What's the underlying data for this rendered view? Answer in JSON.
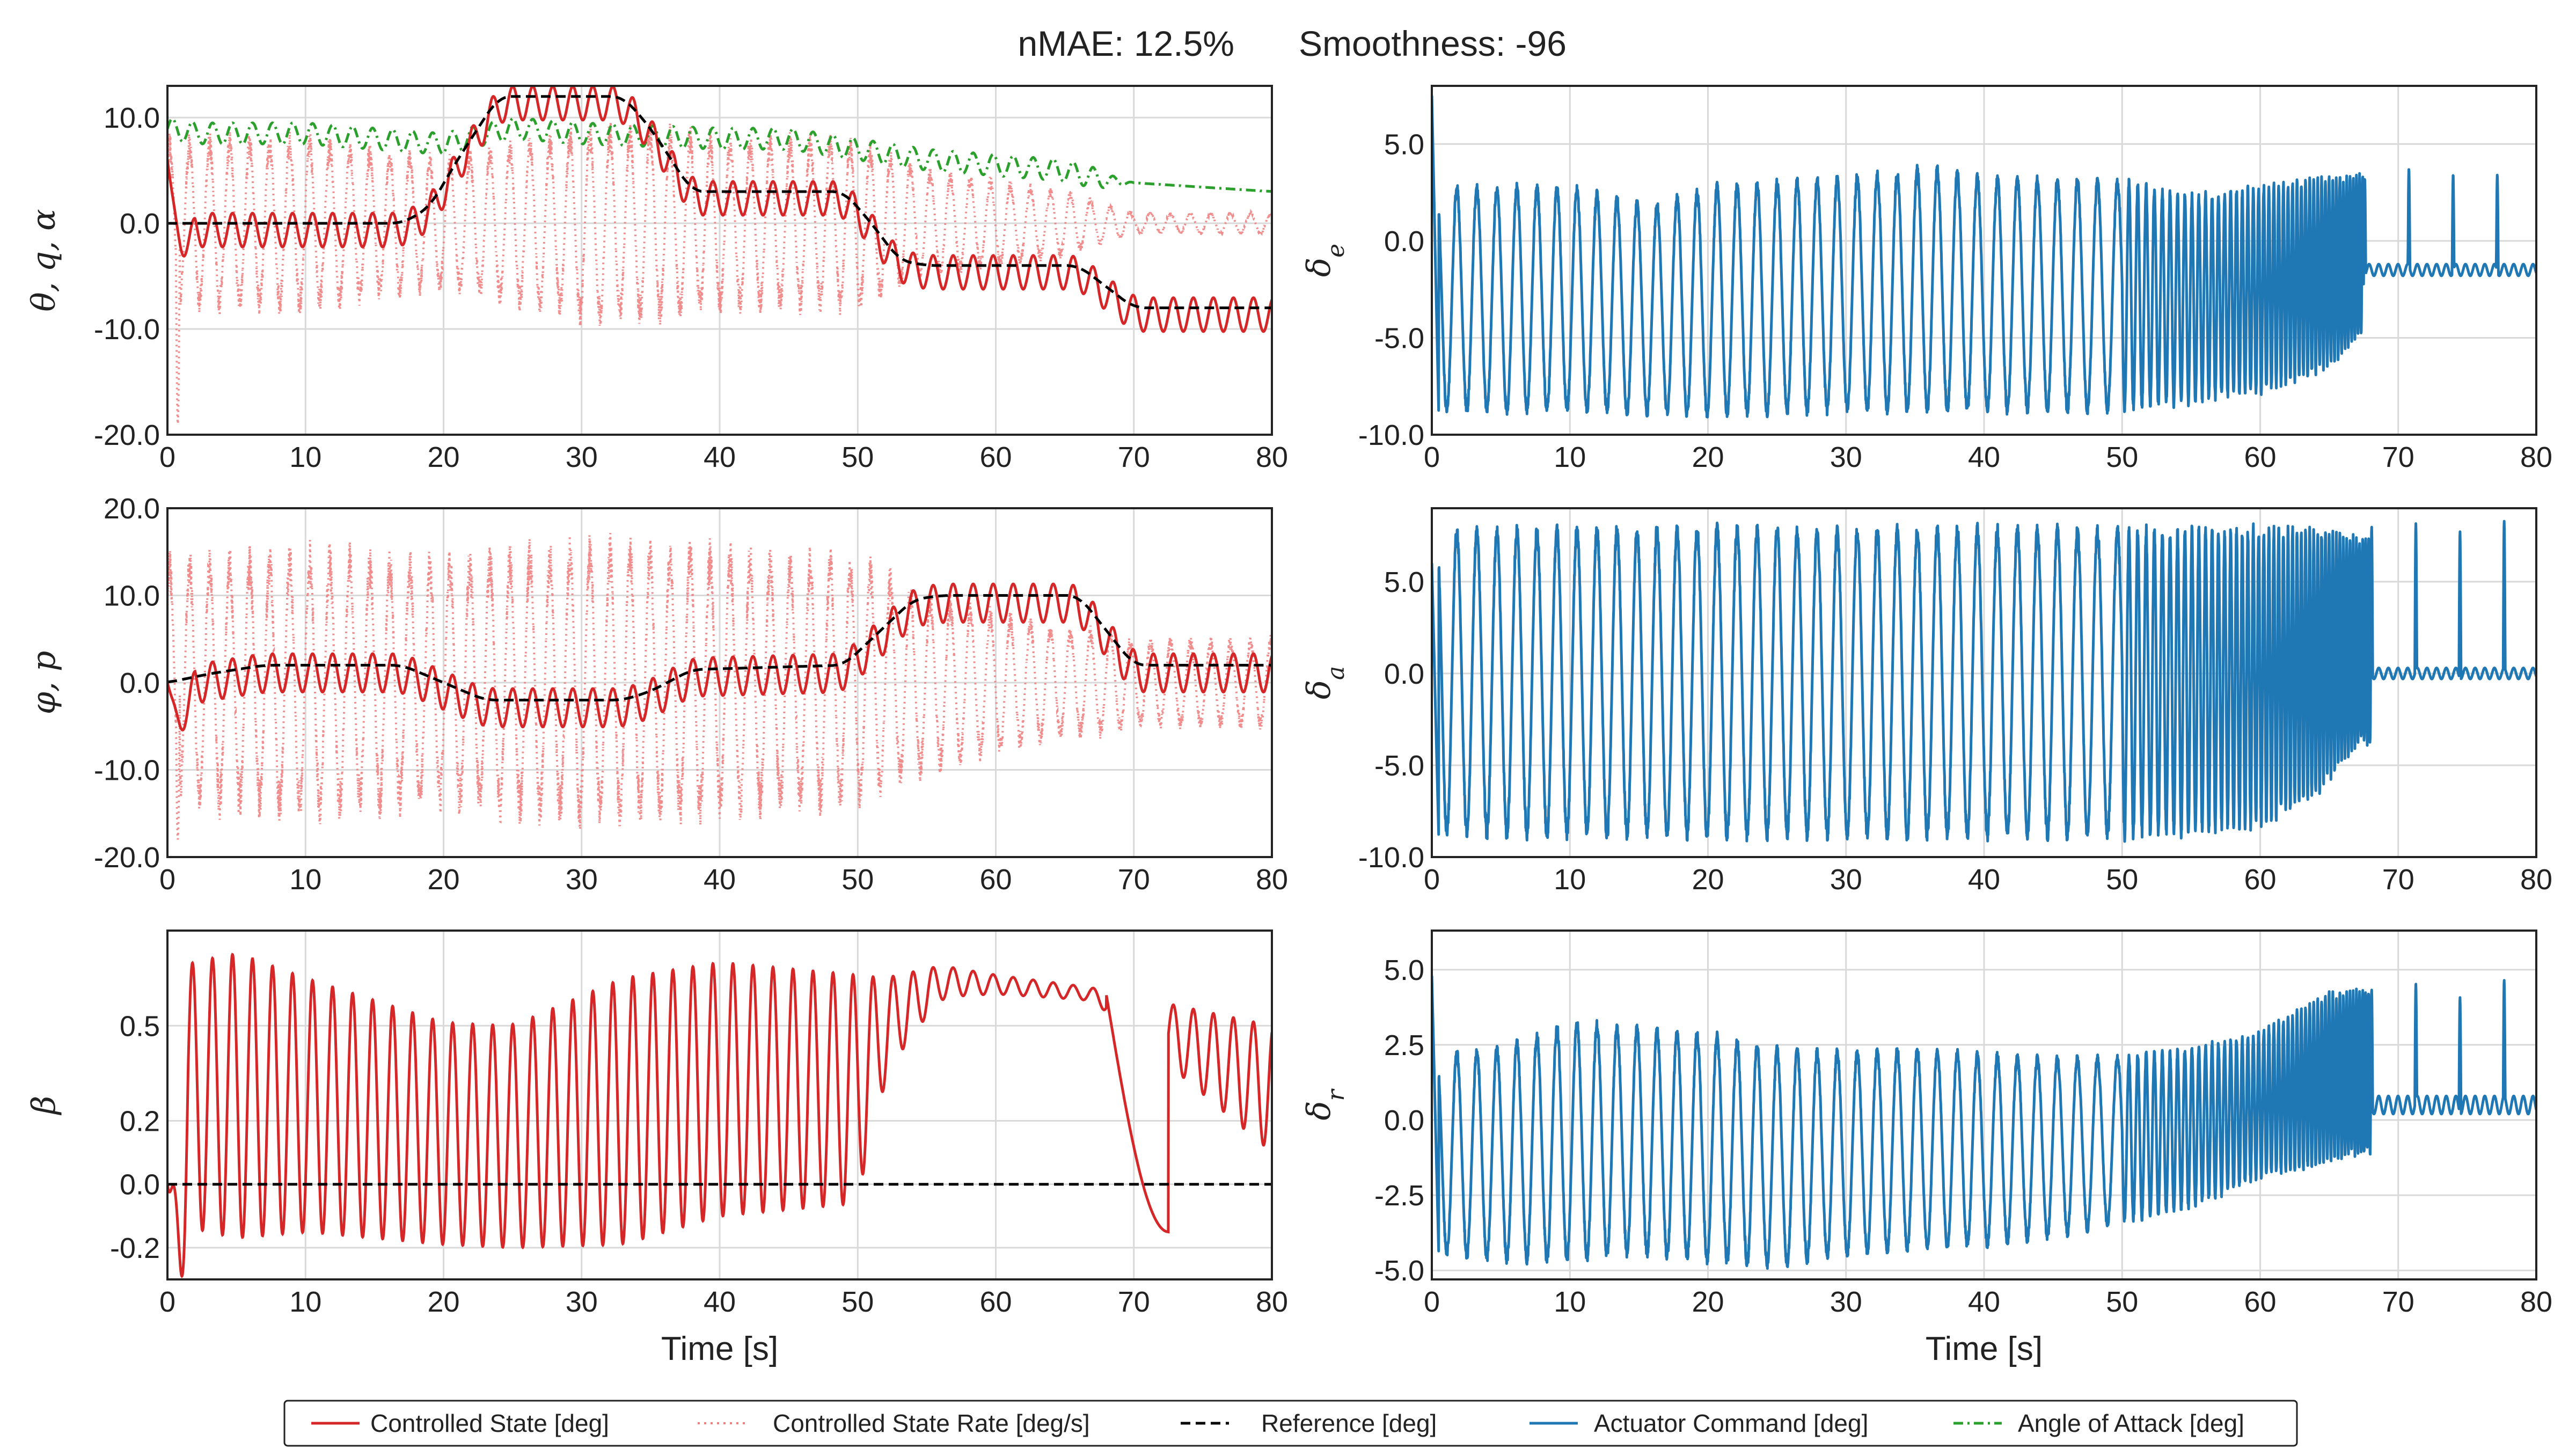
{
  "header": {
    "metric1": "nMAE: 12.5%",
    "metric2": "Smoothness: -96"
  },
  "colors": {
    "controlled_state": "#d62728",
    "controlled_rate": "#f08080",
    "reference": "#000000",
    "actuator": "#1f77b4",
    "alpha": "#2ca02c",
    "grid": "#d9d9d9"
  },
  "legend": [
    {
      "label": "Controlled State [deg]",
      "style": "solid",
      "color_key": "controlled_state"
    },
    {
      "label": "Controlled State Rate [deg/s]",
      "style": "dotted",
      "color_key": "controlled_rate"
    },
    {
      "label": "Reference [deg]",
      "style": "dashed",
      "color_key": "reference"
    },
    {
      "label": "Actuator Command [deg]",
      "style": "solid",
      "color_key": "actuator"
    },
    {
      "label": "Angle of Attack [deg]",
      "style": "dashdot",
      "color_key": "alpha"
    }
  ],
  "chart_data": [
    {
      "type": "line",
      "panel": "theta-q-alpha",
      "ylabel": "θ, q, α",
      "xlabel": "",
      "xlim": [
        0,
        80
      ],
      "ylim": [
        -20,
        13
      ],
      "yticks": [
        -20,
        -10,
        0,
        10
      ],
      "ytick_labels": [
        "-20.0",
        "-10.0",
        "0.0",
        "10.0"
      ],
      "xticks": [
        0,
        10,
        20,
        30,
        40,
        50,
        60,
        70,
        80
      ],
      "grid": true,
      "series": [
        {
          "kind": "reference",
          "name": "Reference [deg]",
          "x": [
            0,
            17,
            19,
            21,
            23,
            24,
            33,
            35,
            37,
            38,
            49,
            51,
            53,
            55,
            66,
            68,
            70,
            80
          ],
          "y": [
            0,
            0,
            1.5,
            6,
            10,
            12,
            12,
            9,
            5,
            3,
            3,
            0,
            -3.5,
            -4,
            -4,
            -6,
            -8,
            -8
          ]
        },
        {
          "kind": "state",
          "name": "Controlled State [deg]",
          "base": "reference",
          "osc_amp": 1.6,
          "osc_period": 1.45,
          "initial": [
            6,
            -4.5
          ]
        },
        {
          "kind": "rate",
          "name": "Controlled State Rate [deg/s]",
          "center": 0,
          "envelope": {
            "x": [
              0,
              10,
              20,
              30,
              35,
              40,
              50,
              55,
              60,
              65,
              70,
              80
            ],
            "y": [
              8,
              8,
              6,
              9,
              9,
              8,
              8,
              5,
              4,
              3,
              1,
              1
            ]
          },
          "min_spike": -19
        },
        {
          "kind": "alpha",
          "name": "Angle of Attack [deg]",
          "x": [
            0,
            2,
            10,
            20,
            25,
            30,
            40,
            45,
            50,
            55,
            60,
            65,
            68,
            80
          ],
          "y": [
            9,
            8.5,
            8.5,
            7.5,
            9,
            8.5,
            8,
            8,
            7,
            6,
            5.5,
            5,
            4,
            3
          ],
          "osc_amp": 1.0,
          "osc_fade_at": 67
        }
      ]
    },
    {
      "type": "line",
      "panel": "phi-p",
      "ylabel": "φ, p",
      "xlabel": "",
      "xlim": [
        0,
        80
      ],
      "ylim": [
        -20,
        20
      ],
      "yticks": [
        -20,
        -10,
        0,
        10,
        20
      ],
      "ytick_labels": [
        "-20.0",
        "-10.0",
        "0.0",
        "10.0",
        "20.0"
      ],
      "xticks": [
        0,
        10,
        20,
        30,
        40,
        50,
        60,
        70,
        80
      ],
      "grid": true,
      "series": [
        {
          "kind": "reference",
          "name": "Reference [deg]",
          "x": [
            0,
            3,
            7,
            17,
            20,
            23,
            33,
            35,
            38,
            49,
            51,
            54,
            56,
            66,
            68,
            70,
            80
          ],
          "y": [
            0,
            1,
            2,
            2,
            0,
            -2,
            -2,
            -1,
            1.5,
            2,
            5,
            9.5,
            10,
            10,
            6,
            2,
            2
          ]
        },
        {
          "kind": "state",
          "name": "Controlled State [deg]",
          "base": "reference",
          "osc_amp": 2.2,
          "osc_period": 1.45,
          "initial": [
            0,
            -4
          ]
        },
        {
          "kind": "rate",
          "name": "Controlled State Rate [deg/s]",
          "center": 0,
          "envelope": {
            "x": [
              0,
              10,
              20,
              30,
              40,
              50,
              55,
              60,
              65,
              68,
              70,
              80
            ],
            "y": [
              14,
              15,
              14,
              16,
              15,
              14,
              10,
              8,
              6,
              6,
              5,
              5
            ]
          },
          "min_spike": -18
        }
      ]
    },
    {
      "type": "line",
      "panel": "beta",
      "ylabel": "β",
      "xlabel": "Time [s]",
      "xlim": [
        0,
        80
      ],
      "ylim": [
        -0.3,
        0.8
      ],
      "yticks": [
        -0.2,
        0.0,
        0.2,
        0.5
      ],
      "ytick_labels": [
        "-0.2",
        "0.0",
        "0.2",
        "0.5"
      ],
      "xticks": [
        0,
        10,
        20,
        30,
        40,
        50,
        60,
        70,
        80
      ],
      "grid": true,
      "series": [
        {
          "kind": "reference",
          "name": "Reference [deg]",
          "x": [
            0,
            80
          ],
          "y": [
            0,
            0
          ]
        },
        {
          "kind": "beta",
          "name": "Controlled State [deg]",
          "center": {
            "x": [
              0,
              5,
              10,
              20,
              25,
              30,
              35,
              40,
              50,
              52,
              56,
              60,
              67,
              80
            ],
            "y": [
              0.28,
              0.28,
              0.25,
              0.16,
              0.15,
              0.2,
              0.25,
              0.3,
              0.3,
              0.5,
              0.64,
              0.63,
              0.6,
              0.3
            ]
          },
          "amp": {
            "x": [
              0,
              5,
              10,
              20,
              25,
              33,
              40,
              50,
              52,
              56,
              60,
              67,
              80
            ],
            "y": [
              0.4,
              0.45,
              0.4,
              0.35,
              0.35,
              0.42,
              0.4,
              0.36,
              0.15,
              0.05,
              0.03,
              0.02,
              0.2
            ]
          }
        }
      ]
    },
    {
      "type": "line",
      "panel": "delta-e",
      "ylabel": "δe",
      "xlabel": "",
      "xlim": [
        0,
        80
      ],
      "ylim": [
        -10,
        8
      ],
      "yticks": [
        -10,
        -5,
        0,
        5
      ],
      "ytick_labels": [
        "-10.0",
        "-5.0",
        "0.0",
        "5.0"
      ],
      "xticks": [
        0,
        10,
        20,
        30,
        40,
        50,
        60,
        70,
        80
      ],
      "grid": true,
      "series": [
        {
          "kind": "actuator",
          "name": "Actuator Command [deg]",
          "upper": {
            "x": [
              0,
              5,
              10,
              16,
              20,
              30,
              36,
              40,
              50,
              55,
              60,
              66,
              67
            ],
            "y": [
              3,
              3,
              3,
              2,
              3,
              3.5,
              4,
              3.5,
              3.3,
              2.5,
              3,
              3.5,
              3.5
            ]
          },
          "lower": {
            "x": [
              0,
              10,
              20,
              30,
              40,
              50,
              55,
              60,
              64,
              66,
              67
            ],
            "y": [
              -9,
              -9,
              -9.2,
              -9,
              -9,
              -9,
              -8.5,
              -8,
              -7,
              -6,
              -5
            ]
          },
          "tail_level": -1.5,
          "tail_from": 67.5,
          "start_spike": 7.5
        }
      ]
    },
    {
      "type": "line",
      "panel": "delta-a",
      "ylabel": "δa",
      "xlabel": "",
      "xlim": [
        0,
        80
      ],
      "ylim": [
        -10,
        9
      ],
      "yticks": [
        -10,
        -5,
        0,
        5
      ],
      "ytick_labels": [
        "-10.0",
        "-5.0",
        "0.0",
        "5.0"
      ],
      "xticks": [
        0,
        10,
        20,
        30,
        40,
        50,
        60,
        70,
        80
      ],
      "grid": true,
      "series": [
        {
          "kind": "actuator",
          "name": "Actuator Command [deg]",
          "upper": {
            "x": [
              0,
              10,
              20,
              30,
              40,
              50,
              60,
              66,
              67
            ],
            "y": [
              8,
              8.2,
              8.2,
              8.2,
              8.2,
              8.2,
              8.2,
              8,
              7.5
            ]
          },
          "lower": {
            "x": [
              0,
              10,
              20,
              30,
              40,
              50,
              55,
              60,
              64,
              67
            ],
            "y": [
              -9,
              -9.2,
              -9.2,
              -9.2,
              -9.2,
              -9.2,
              -9,
              -8.5,
              -7,
              -4
            ]
          },
          "tail_level": 0,
          "tail_from": 68,
          "start_spike": 6
        }
      ]
    },
    {
      "type": "line",
      "panel": "delta-r",
      "ylabel": "δr",
      "xlabel": "Time [s]",
      "xlim": [
        0,
        80
      ],
      "ylim": [
        -5.3,
        6.3
      ],
      "yticks": [
        -5.0,
        -2.5,
        0.0,
        2.5,
        5.0
      ],
      "ytick_labels": [
        "-5.0",
        "-2.5",
        "0.0",
        "2.5",
        "5.0"
      ],
      "xticks": [
        0,
        10,
        20,
        30,
        40,
        50,
        60,
        70,
        80
      ],
      "grid": true,
      "series": [
        {
          "kind": "actuator",
          "name": "Actuator Command [deg]",
          "upper": {
            "x": [
              0,
              5,
              10,
              15,
              20,
              25,
              30,
              35,
              40,
              45,
              50,
              55,
              60,
              65,
              67
            ],
            "y": [
              2.3,
              2.5,
              3.4,
              3.2,
              3,
              2.5,
              2.4,
              2.5,
              2.3,
              2.2,
              2.2,
              2.5,
              3,
              4.3,
              4.4
            ]
          },
          "lower": {
            "x": [
              0,
              5,
              10,
              15,
              20,
              25,
              30,
              35,
              40,
              45,
              50,
              55,
              60,
              65,
              67
            ],
            "y": [
              -4.5,
              -4.8,
              -4.8,
              -4.6,
              -4.8,
              -5.0,
              -4.6,
              -4.4,
              -4.3,
              -4.0,
              -3.5,
              -3.0,
              -2.0,
              -1.5,
              -1.2
            ]
          },
          "tail_level": 0.5,
          "tail_from": 68,
          "start_spike": 4.8
        }
      ]
    }
  ]
}
